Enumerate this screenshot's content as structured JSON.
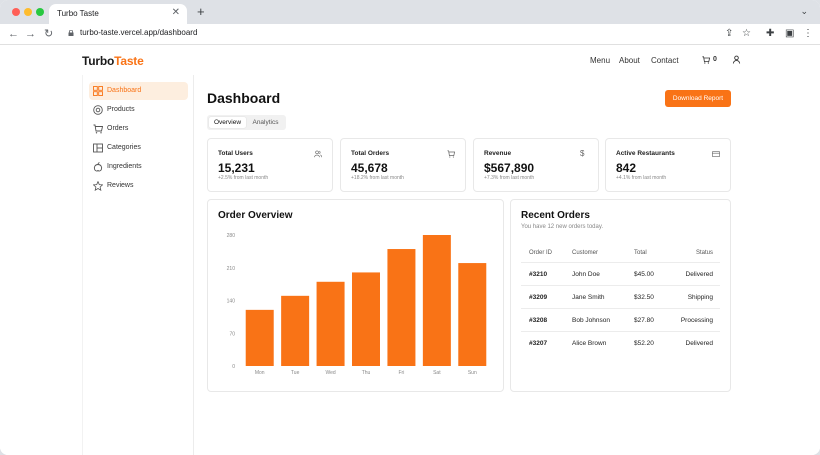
{
  "browser": {
    "tab_title": "Turbo Taste",
    "tab_close": "✕",
    "new_tab": "+",
    "url": "turbo-taste.vercel.app/dashboard"
  },
  "header": {
    "logo_part1": "Turbo",
    "logo_part2": "Taste",
    "nav": [
      "Menu",
      "About",
      "Contact"
    ],
    "cart_count": "0"
  },
  "sidebar": {
    "items": [
      {
        "label": "Dashboard",
        "icon": "dashboard-icon",
        "active": true
      },
      {
        "label": "Products",
        "icon": "products-icon",
        "active": false
      },
      {
        "label": "Orders",
        "icon": "cart-icon",
        "active": false
      },
      {
        "label": "Categories",
        "icon": "categories-icon",
        "active": false
      },
      {
        "label": "Ingredients",
        "icon": "ingredients-icon",
        "active": false
      },
      {
        "label": "Reviews",
        "icon": "star-icon",
        "active": false
      }
    ]
  },
  "main": {
    "title": "Dashboard",
    "download_label": "Download Report",
    "tabs": [
      "Overview",
      "Analytics"
    ]
  },
  "stats": [
    {
      "title": "Total Users",
      "value": "15,231",
      "sub": "+2.5% from last month",
      "icon": "users-icon"
    },
    {
      "title": "Total Orders",
      "value": "45,678",
      "sub": "+18.2% from last month",
      "icon": "cart-icon"
    },
    {
      "title": "Revenue",
      "value": "$567,890",
      "sub": "+7.3% from last month",
      "icon": "dollar-icon"
    },
    {
      "title": "Active Restaurants",
      "value": "842",
      "sub": "+4.1% from last month",
      "icon": "card-icon"
    }
  ],
  "order_overview": {
    "title": "Order Overview"
  },
  "chart_data": {
    "type": "bar",
    "title": "Order Overview",
    "categories": [
      "Mon",
      "Tue",
      "Wed",
      "Thu",
      "Fri",
      "Sat",
      "Sun"
    ],
    "values": [
      120,
      150,
      180,
      200,
      250,
      280,
      220
    ],
    "yticks": [
      "0",
      "70",
      "140",
      "210",
      "280"
    ],
    "ylim": [
      0,
      280
    ],
    "color": "#f97316",
    "grid": false
  },
  "recent_orders": {
    "title": "Recent Orders",
    "subtitle": "You have 12 new orders today.",
    "columns": [
      "Order ID",
      "Customer",
      "Total",
      "Status"
    ],
    "rows": [
      {
        "id": "#3210",
        "customer": "John Doe",
        "total": "$45.00",
        "status": "Delivered"
      },
      {
        "id": "#3209",
        "customer": "Jane Smith",
        "total": "$32.50",
        "status": "Shipping"
      },
      {
        "id": "#3208",
        "customer": "Bob Johnson",
        "total": "$27.80",
        "status": "Processing"
      },
      {
        "id": "#3207",
        "customer": "Alice Brown",
        "total": "$52.20",
        "status": "Delivered"
      }
    ]
  },
  "colors": {
    "accent": "#f97316",
    "accent_soft": "#fdeedf"
  }
}
